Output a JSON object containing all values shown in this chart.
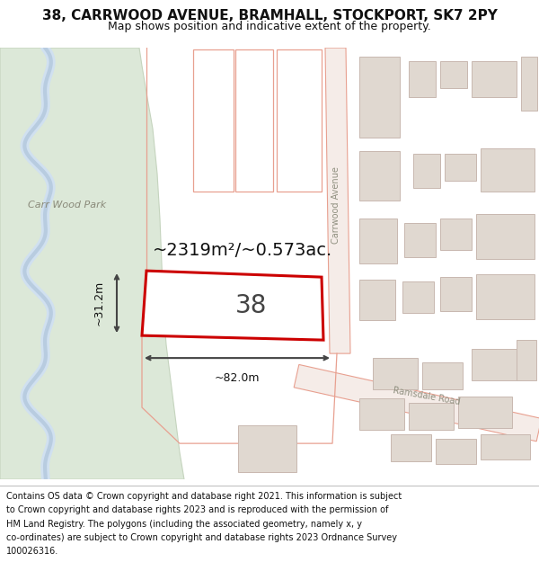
{
  "title_line1": "38, CARRWOOD AVENUE, BRAMHALL, STOCKPORT, SK7 2PY",
  "title_line2": "Map shows position and indicative extent of the property.",
  "footer_lines": [
    "Contains OS data © Crown copyright and database right 2021. This information is subject",
    "to Crown copyright and database rights 2023 and is reproduced with the permission of",
    "HM Land Registry. The polygons (including the associated geometry, namely x, y",
    "co-ordinates) are subject to Crown copyright and database rights 2023 Ordnance Survey",
    "100026316."
  ],
  "map_bg_color": "#f0ede8",
  "park_color": "#dce8d8",
  "park_edge_color": "#c5d4be",
  "road_fill_color": "#f5ece8",
  "road_edge_color": "#e8a090",
  "building_fill": "#e0d8d0",
  "building_edge": "#c8b8b0",
  "water_color": "#b8cce0",
  "water_light": "#d0e0f0",
  "subject_fill": "#ffffff",
  "subject_edge": "#cc0000",
  "subject_lw": 2.2,
  "dim_color": "#444444",
  "area_text": "~2319m²/~0.573ac.",
  "width_text": "~82.0m",
  "height_text": "~31.2m",
  "number_text": "38",
  "carrwood_label": "Carrwood Avenue",
  "ramsdale_label": "Ramsdale Road",
  "park_label": "Carr Wood Park",
  "title_fs": 11,
  "subtitle_fs": 9,
  "footer_fs": 7.0,
  "area_fs": 14,
  "number_fs": 20,
  "dim_fs": 9,
  "park_label_fs": 8,
  "road_label_fs": 7
}
